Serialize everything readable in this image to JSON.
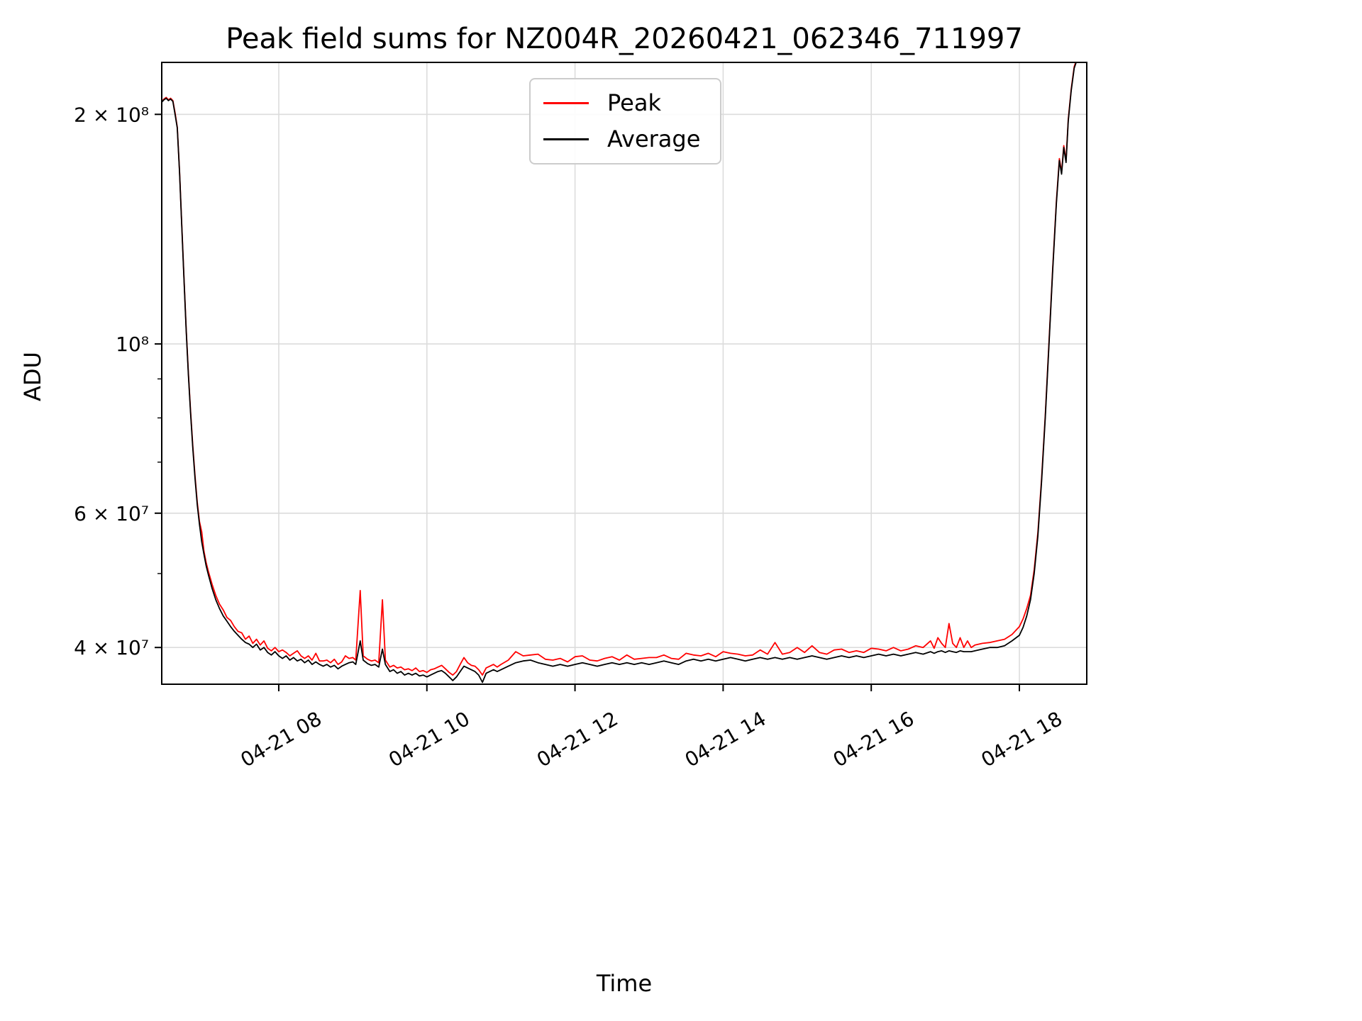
{
  "page": {
    "background": "#ffffff"
  },
  "chart_data": {
    "type": "line",
    "title": "Peak field sums for NZ004R_20260421_062346_711997",
    "xlabel": "Time",
    "ylabel": "ADU",
    "yscale": "log",
    "grid": true,
    "legend_position": "upper center",
    "x_unit": "hours of day on 04-21 (decimal)",
    "xlim": [
      6.42,
      18.91
    ],
    "ylim": [
      35800000,
      234000000
    ],
    "grid_color": "#dcdcdc",
    "frame_color": "#000000",
    "xticks": [
      {
        "value": 8,
        "label": "04-21 08"
      },
      {
        "value": 10,
        "label": "04-21 10"
      },
      {
        "value": 12,
        "label": "04-21 12"
      },
      {
        "value": 14,
        "label": "04-21 14"
      },
      {
        "value": 16,
        "label": "04-21 16"
      },
      {
        "value": 18,
        "label": "04-21 18"
      }
    ],
    "yticks": [
      {
        "value": 40000000,
        "label": "4 × 10⁷"
      },
      {
        "value": 60000000,
        "label": "6 × 10⁷"
      },
      {
        "value": 100000000,
        "label": "10⁸"
      },
      {
        "value": 200000000,
        "label": "2 × 10⁸"
      }
    ],
    "yticks_minor": [
      50000000,
      70000000,
      80000000,
      90000000
    ],
    "value_scale": 10000000,
    "columns": [
      "time_hours",
      "Peak",
      "Average"
    ],
    "series": [
      {
        "name": "Peak",
        "color": "#ff0000"
      },
      {
        "name": "Average",
        "color": "#000000"
      }
    ],
    "points": [
      [
        6.42,
        20.8,
        20.75
      ],
      [
        6.45,
        20.95,
        20.9
      ],
      [
        6.48,
        21.05,
        21.0
      ],
      [
        6.51,
        20.9,
        20.85
      ],
      [
        6.54,
        21.0,
        20.95
      ],
      [
        6.57,
        20.85,
        20.8
      ],
      [
        6.6,
        20.1,
        20.0
      ],
      [
        6.63,
        19.25,
        19.2
      ],
      [
        6.66,
        16.85,
        16.8
      ],
      [
        6.69,
        14.35,
        14.3
      ],
      [
        6.72,
        12.25,
        12.2
      ],
      [
        6.75,
        10.45,
        10.4
      ],
      [
        6.78,
        9.15,
        9.1
      ],
      [
        6.81,
        8.15,
        8.1
      ],
      [
        6.84,
        7.35,
        7.3
      ],
      [
        6.87,
        6.7,
        6.65
      ],
      [
        6.9,
        6.2,
        6.15
      ],
      [
        6.93,
        5.85,
        5.8
      ],
      [
        6.96,
        5.67,
        5.5
      ],
      [
        6.99,
        5.35,
        5.3
      ],
      [
        7.02,
        5.17,
        5.12
      ],
      [
        7.05,
        5.03,
        4.98
      ],
      [
        7.1,
        4.84,
        4.78
      ],
      [
        7.15,
        4.68,
        4.62
      ],
      [
        7.2,
        4.56,
        4.5
      ],
      [
        7.25,
        4.48,
        4.4
      ],
      [
        7.3,
        4.38,
        4.33
      ],
      [
        7.35,
        4.34,
        4.26
      ],
      [
        7.4,
        4.26,
        4.2
      ],
      [
        7.45,
        4.2,
        4.15
      ],
      [
        7.5,
        4.18,
        4.1
      ],
      [
        7.55,
        4.1,
        4.06
      ],
      [
        7.6,
        4.14,
        4.04
      ],
      [
        7.65,
        4.05,
        4.0
      ],
      [
        7.7,
        4.1,
        4.04
      ],
      [
        7.75,
        4.03,
        3.97
      ],
      [
        7.8,
        4.08,
        4.0
      ],
      [
        7.85,
        3.99,
        3.94
      ],
      [
        7.9,
        3.96,
        3.91
      ],
      [
        7.95,
        4.0,
        3.95
      ],
      [
        8.0,
        3.95,
        3.9
      ],
      [
        8.05,
        3.97,
        3.87
      ],
      [
        8.1,
        3.94,
        3.9
      ],
      [
        8.15,
        3.9,
        3.85
      ],
      [
        8.2,
        3.93,
        3.88
      ],
      [
        8.25,
        3.96,
        3.84
      ],
      [
        8.3,
        3.9,
        3.86
      ],
      [
        8.35,
        3.87,
        3.82
      ],
      [
        8.4,
        3.9,
        3.85
      ],
      [
        8.45,
        3.85,
        3.8
      ],
      [
        8.5,
        3.93,
        3.83
      ],
      [
        8.55,
        3.84,
        3.8
      ],
      [
        8.6,
        3.84,
        3.78
      ],
      [
        8.65,
        3.85,
        3.8
      ],
      [
        8.7,
        3.82,
        3.77
      ],
      [
        8.75,
        3.86,
        3.79
      ],
      [
        8.8,
        3.8,
        3.75
      ],
      [
        8.85,
        3.83,
        3.78
      ],
      [
        8.9,
        3.9,
        3.8
      ],
      [
        8.95,
        3.87,
        3.82
      ],
      [
        9.0,
        3.88,
        3.83
      ],
      [
        9.04,
        3.85,
        3.8
      ],
      [
        9.1,
        4.75,
        4.08
      ],
      [
        9.14,
        3.9,
        3.85
      ],
      [
        9.2,
        3.86,
        3.81
      ],
      [
        9.25,
        3.84,
        3.79
      ],
      [
        9.3,
        3.85,
        3.8
      ],
      [
        9.35,
        3.82,
        3.77
      ],
      [
        9.4,
        4.62,
        3.98
      ],
      [
        9.44,
        3.85,
        3.8
      ],
      [
        9.5,
        3.77,
        3.72
      ],
      [
        9.55,
        3.79,
        3.74
      ],
      [
        9.6,
        3.76,
        3.7
      ],
      [
        9.65,
        3.77,
        3.72
      ],
      [
        9.7,
        3.74,
        3.68
      ],
      [
        9.75,
        3.75,
        3.7
      ],
      [
        9.8,
        3.73,
        3.68
      ],
      [
        9.85,
        3.76,
        3.7
      ],
      [
        9.9,
        3.72,
        3.67
      ],
      [
        9.95,
        3.73,
        3.68
      ],
      [
        10.0,
        3.71,
        3.66
      ],
      [
        10.05,
        3.74,
        3.68
      ],
      [
        10.1,
        3.75,
        3.7
      ],
      [
        10.15,
        3.77,
        3.72
      ],
      [
        10.2,
        3.79,
        3.73
      ],
      [
        10.25,
        3.75,
        3.7
      ],
      [
        10.3,
        3.71,
        3.66
      ],
      [
        10.35,
        3.68,
        3.62
      ],
      [
        10.4,
        3.72,
        3.66
      ],
      [
        10.45,
        3.8,
        3.72
      ],
      [
        10.5,
        3.88,
        3.78
      ],
      [
        10.55,
        3.82,
        3.76
      ],
      [
        10.6,
        3.79,
        3.74
      ],
      [
        10.65,
        3.78,
        3.72
      ],
      [
        10.7,
        3.74,
        3.68
      ],
      [
        10.75,
        3.68,
        3.6
      ],
      [
        10.8,
        3.76,
        3.7
      ],
      [
        10.85,
        3.78,
        3.72
      ],
      [
        10.9,
        3.8,
        3.74
      ],
      [
        10.95,
        3.77,
        3.72
      ],
      [
        11.0,
        3.8,
        3.74
      ],
      [
        11.1,
        3.85,
        3.78
      ],
      [
        11.2,
        3.95,
        3.82
      ],
      [
        11.3,
        3.9,
        3.84
      ],
      [
        11.4,
        3.91,
        3.85
      ],
      [
        11.5,
        3.92,
        3.82
      ],
      [
        11.6,
        3.86,
        3.8
      ],
      [
        11.7,
        3.85,
        3.78
      ],
      [
        11.8,
        3.87,
        3.8
      ],
      [
        11.9,
        3.83,
        3.78
      ],
      [
        12.0,
        3.89,
        3.8
      ],
      [
        12.1,
        3.9,
        3.82
      ],
      [
        12.2,
        3.85,
        3.8
      ],
      [
        12.3,
        3.84,
        3.78
      ],
      [
        12.4,
        3.87,
        3.8
      ],
      [
        12.5,
        3.89,
        3.82
      ],
      [
        12.6,
        3.85,
        3.8
      ],
      [
        12.7,
        3.91,
        3.82
      ],
      [
        12.8,
        3.86,
        3.8
      ],
      [
        12.9,
        3.87,
        3.82
      ],
      [
        13.0,
        3.88,
        3.8
      ],
      [
        13.1,
        3.88,
        3.82
      ],
      [
        13.2,
        3.91,
        3.84
      ],
      [
        13.3,
        3.87,
        3.82
      ],
      [
        13.4,
        3.86,
        3.8
      ],
      [
        13.5,
        3.93,
        3.84
      ],
      [
        13.6,
        3.91,
        3.86
      ],
      [
        13.7,
        3.9,
        3.84
      ],
      [
        13.8,
        3.93,
        3.86
      ],
      [
        13.9,
        3.89,
        3.84
      ],
      [
        14.0,
        3.95,
        3.86
      ],
      [
        14.1,
        3.93,
        3.88
      ],
      [
        14.2,
        3.92,
        3.86
      ],
      [
        14.3,
        3.9,
        3.84
      ],
      [
        14.4,
        3.91,
        3.86
      ],
      [
        14.5,
        3.97,
        3.88
      ],
      [
        14.6,
        3.92,
        3.86
      ],
      [
        14.7,
        4.06,
        3.88
      ],
      [
        14.8,
        3.92,
        3.86
      ],
      [
        14.9,
        3.94,
        3.88
      ],
      [
        15.0,
        4.0,
        3.86
      ],
      [
        15.1,
        3.94,
        3.88
      ],
      [
        15.2,
        4.02,
        3.9
      ],
      [
        15.3,
        3.94,
        3.88
      ],
      [
        15.4,
        3.92,
        3.86
      ],
      [
        15.5,
        3.97,
        3.88
      ],
      [
        15.6,
        3.98,
        3.9
      ],
      [
        15.7,
        3.94,
        3.88
      ],
      [
        15.8,
        3.96,
        3.9
      ],
      [
        15.9,
        3.94,
        3.88
      ],
      [
        16.0,
        3.99,
        3.9
      ],
      [
        16.1,
        3.98,
        3.92
      ],
      [
        16.2,
        3.96,
        3.9
      ],
      [
        16.3,
        4.0,
        3.92
      ],
      [
        16.4,
        3.96,
        3.9
      ],
      [
        16.5,
        3.98,
        3.92
      ],
      [
        16.6,
        4.02,
        3.94
      ],
      [
        16.7,
        4.0,
        3.92
      ],
      [
        16.8,
        4.08,
        3.95
      ],
      [
        16.85,
        3.99,
        3.93
      ],
      [
        16.9,
        4.12,
        3.95
      ],
      [
        16.95,
        4.05,
        3.96
      ],
      [
        17.0,
        4.0,
        3.94
      ],
      [
        17.05,
        4.3,
        3.96
      ],
      [
        17.1,
        4.05,
        3.95
      ],
      [
        17.15,
        4.0,
        3.94
      ],
      [
        17.2,
        4.12,
        3.96
      ],
      [
        17.25,
        4.0,
        3.95
      ],
      [
        17.3,
        4.08,
        3.95
      ],
      [
        17.35,
        4.0,
        3.95
      ],
      [
        17.4,
        4.03,
        3.96
      ],
      [
        17.5,
        4.05,
        3.98
      ],
      [
        17.6,
        4.06,
        4.0
      ],
      [
        17.7,
        4.08,
        4.0
      ],
      [
        17.8,
        4.1,
        4.02
      ],
      [
        17.9,
        4.16,
        4.08
      ],
      [
        18.0,
        4.26,
        4.15
      ],
      [
        18.05,
        4.36,
        4.25
      ],
      [
        18.1,
        4.5,
        4.4
      ],
      [
        18.15,
        4.68,
        4.62
      ],
      [
        18.2,
        5.06,
        5.0
      ],
      [
        18.25,
        5.66,
        5.6
      ],
      [
        18.3,
        6.66,
        6.6
      ],
      [
        18.35,
        8.06,
        8.0
      ],
      [
        18.4,
        10.08,
        10.0
      ],
      [
        18.45,
        12.58,
        12.5
      ],
      [
        18.5,
        15.4,
        15.3
      ],
      [
        18.54,
        17.5,
        17.4
      ],
      [
        18.57,
        16.8,
        16.7
      ],
      [
        18.6,
        18.2,
        18.1
      ],
      [
        18.63,
        17.4,
        17.3
      ],
      [
        18.66,
        19.7,
        19.6
      ],
      [
        18.7,
        21.6,
        21.5
      ],
      [
        18.74,
        23.1,
        23.0
      ],
      [
        18.78,
        23.7,
        23.6
      ],
      [
        18.85,
        23.9,
        23.8
      ]
    ]
  }
}
